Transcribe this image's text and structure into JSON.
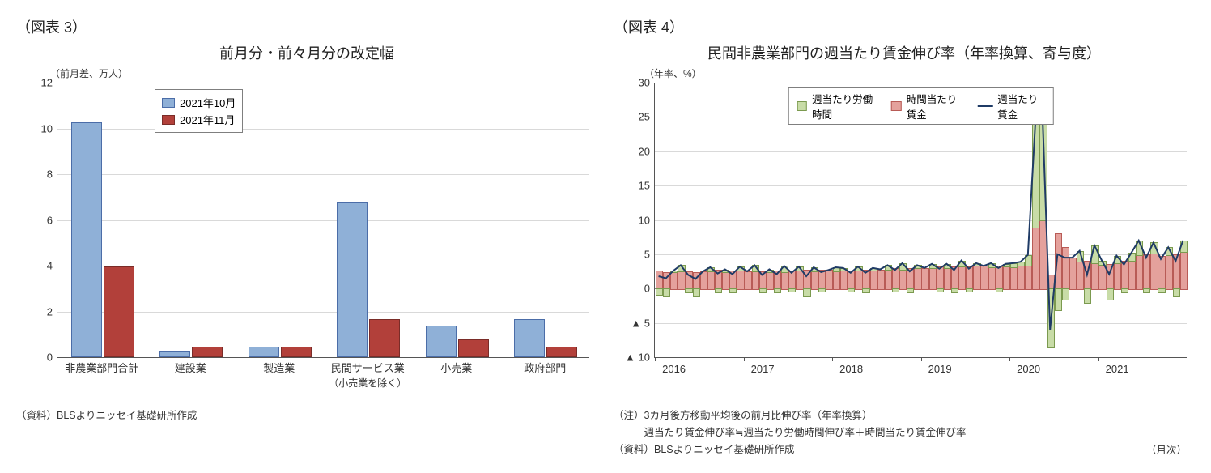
{
  "figure3": {
    "label": "（図表 3）",
    "title": "前月分・前々月分の改定幅",
    "y_axis_label": "（前月差、万人）",
    "ylim": [
      0,
      12
    ],
    "ytick_step": 2,
    "categories": [
      "非農業部門合計",
      "建設業",
      "製造業",
      "民間サービス業",
      "小売業",
      "政府部門"
    ],
    "category_sublabel_index": 3,
    "category_sublabel": "（小売業を除く）",
    "dashed_divider_after_index": 0,
    "series": [
      {
        "name": "2021年10月",
        "color": "#8fb0d7",
        "border": "#4b6da8",
        "values": [
          10.2,
          0.2,
          0.4,
          6.7,
          1.3,
          1.6
        ]
      },
      {
        "name": "2021年11月",
        "color": "#b2403a",
        "border": "#7a2c28",
        "values": [
          3.9,
          0.4,
          0.4,
          1.6,
          0.7,
          0.4
        ]
      }
    ],
    "grid_color": "#d9d9d9",
    "bar_width_pct": 5.5,
    "source": "（資料）BLSよりニッセイ基礎研所作成"
  },
  "figure4": {
    "label": "（図表 4）",
    "title": "民間非農業部門の週当たり賃金伸び率（年率換算、寄与度）",
    "y_axis_label": "（年率、%）",
    "ylim": [
      -10,
      30
    ],
    "yticks": [
      -10,
      -5,
      0,
      5,
      10,
      15,
      20,
      25,
      30
    ],
    "ytick_labels": [
      "▲ 10",
      "▲ 5",
      "0",
      "5",
      "10",
      "15",
      "20",
      "25",
      "30"
    ],
    "x_years": [
      2016,
      2017,
      2018,
      2019,
      2020,
      2021
    ],
    "x_label_right": "（月次）",
    "legend": [
      {
        "name": "週当たり労働時間",
        "type": "bar",
        "color": "#c8dca7",
        "border": "#7b9a4f"
      },
      {
        "name": "時間当たり賃金",
        "type": "bar",
        "color": "#e4a19c",
        "border": "#b85b56"
      },
      {
        "name": "週当たり賃金",
        "type": "line",
        "color": "#1f3b66"
      }
    ],
    "bars": {
      "hours": [
        -0.8,
        -1,
        0.1,
        0.8,
        -0.5,
        -1,
        0,
        0.5,
        -0.5,
        0.3,
        -0.5,
        0.5,
        0,
        0.8,
        -0.5,
        0.3,
        -0.5,
        0.8,
        -0.3,
        0.5,
        -1,
        0.5,
        -0.3,
        0,
        0.5,
        0.3,
        -0.3,
        0.5,
        -0.5,
        0.3,
        0,
        0.5,
        -0.3,
        0.8,
        -0.5,
        0.3,
        0,
        0.5,
        -0.3,
        0.5,
        -0.5,
        0.8,
        -0.3,
        0.3,
        0,
        0.5,
        -0.3,
        0.3,
        0.5,
        0.5,
        1.5,
        15,
        14,
        -8.5,
        -3,
        -1.5,
        0,
        1.5,
        -2,
        2.5,
        0.5,
        -1.5,
        1,
        -0.5,
        1,
        2,
        -0.5,
        1.5,
        -0.5,
        1,
        -1,
        1.5
      ],
      "wages": [
        2.6,
        2.4,
        2.5,
        2.6,
        2.5,
        2.4,
        2.5,
        2.6,
        2.7,
        2.5,
        2.6,
        2.7,
        2.5,
        2.6,
        2.5,
        2.5,
        2.6,
        2.5,
        2.6,
        2.7,
        2.8,
        2.6,
        2.7,
        2.7,
        2.6,
        2.7,
        2.6,
        2.7,
        2.8,
        2.7,
        2.8,
        2.9,
        3.0,
        2.9,
        3.0,
        3.1,
        3.0,
        3.1,
        3.2,
        3.1,
        3.2,
        3.3,
        3.2,
        3.4,
        3.3,
        3.2,
        3.3,
        3.3,
        3.2,
        3.4,
        3.4,
        9,
        10,
        2,
        8,
        6,
        4.5,
        4,
        4,
        3.8,
        3.6,
        3.6,
        3.8,
        4,
        4.2,
        5,
        5,
        5.2,
        4.8,
        5,
        5,
        5.5
      ],
      "line": [
        1.8,
        1.5,
        2.6,
        3.4,
        2,
        1.4,
        2.5,
        3.1,
        2.2,
        2.8,
        2.1,
        3.2,
        2.5,
        3.4,
        2,
        2.8,
        2.1,
        3.3,
        2.3,
        3.2,
        1.8,
        3.1,
        2.4,
        2.7,
        3.1,
        3,
        2.3,
        3.2,
        2.3,
        3,
        2.8,
        3.4,
        2.7,
        3.7,
        2.5,
        3.4,
        3,
        3.6,
        2.9,
        3.6,
        2.7,
        4.1,
        2.9,
        3.7,
        3.3,
        3.7,
        3,
        3.6,
        3.7,
        3.9,
        4.9,
        24,
        24.5,
        -6,
        5,
        4.5,
        4.5,
        5.5,
        2,
        6.3,
        4.1,
        2.1,
        4.8,
        3.5,
        5.2,
        7,
        4.5,
        6.7,
        4.3,
        6,
        4,
        7
      ]
    },
    "grid_color": "#d9d9d9",
    "notes": [
      "（注）3カ月後方移動平均後の前月比伸び率（年率換算）",
      "　　　週当たり賃金伸び率≒週当たり労働時間伸び率＋時間当たり賃金伸び率",
      "（資料）BLSよりニッセイ基礎研所作成"
    ]
  }
}
